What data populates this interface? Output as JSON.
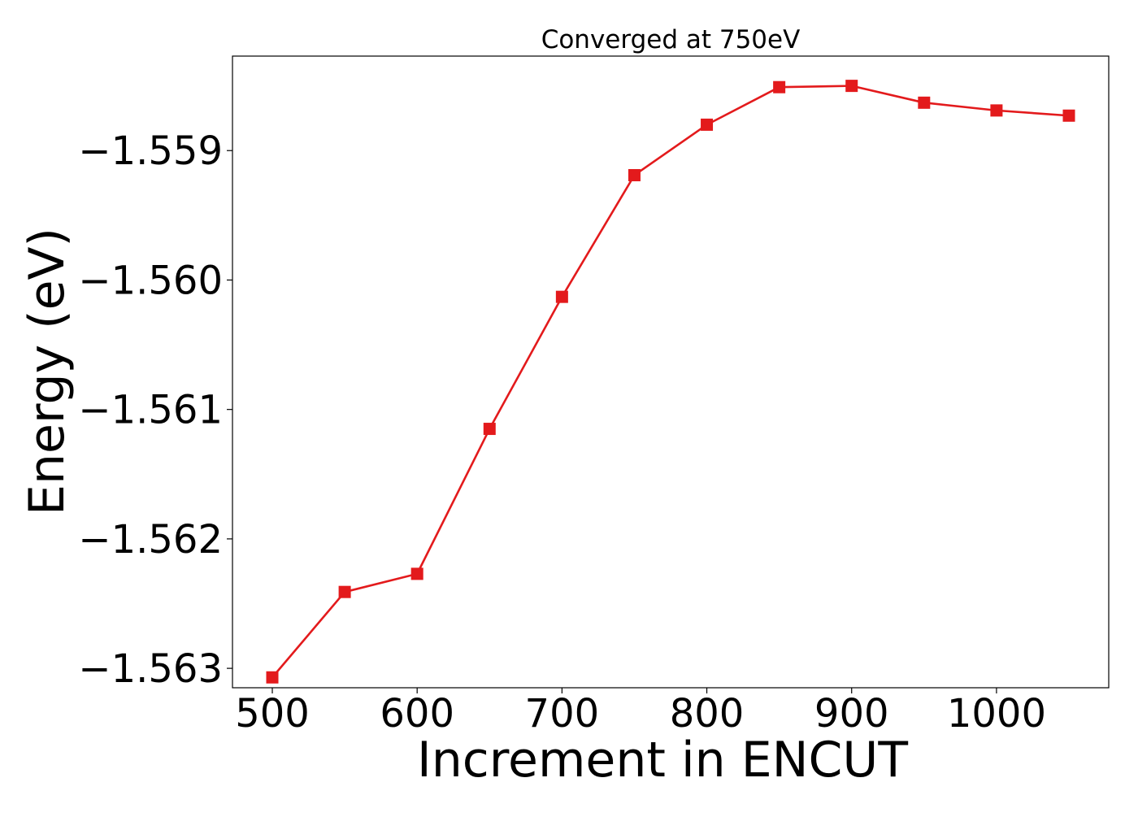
{
  "chart_data": {
    "type": "line",
    "title": "Converged at 750eV",
    "xlabel": "Increment in ENCUT",
    "ylabel": "Energy (eV)",
    "x": [
      500,
      550,
      600,
      650,
      700,
      750,
      800,
      850,
      900,
      950,
      1000,
      1050
    ],
    "series": [
      {
        "values": [
          -1.56307,
          -1.56241,
          -1.56227,
          -1.56115,
          -1.56013,
          -1.55919,
          -1.5588,
          -1.55851,
          -1.5585,
          -1.55863,
          -1.55869,
          -1.55873
        ],
        "color": "#e31a1c",
        "marker": "square"
      }
    ],
    "xticks": [
      500,
      600,
      700,
      800,
      900,
      1000
    ],
    "xtick_labels": [
      "500",
      "600",
      "700",
      "800",
      "900",
      "1000"
    ],
    "yticks": [
      -1.563,
      -1.562,
      -1.561,
      -1.56,
      -1.559
    ],
    "ytick_labels": [
      "−1.563",
      "−1.562",
      "−1.561",
      "−1.560",
      "−1.559"
    ],
    "xlim": [
      472.5,
      1077.5
    ],
    "ylim": [
      -1.56315,
      -1.55827
    ],
    "grid": false,
    "legend": false
  }
}
